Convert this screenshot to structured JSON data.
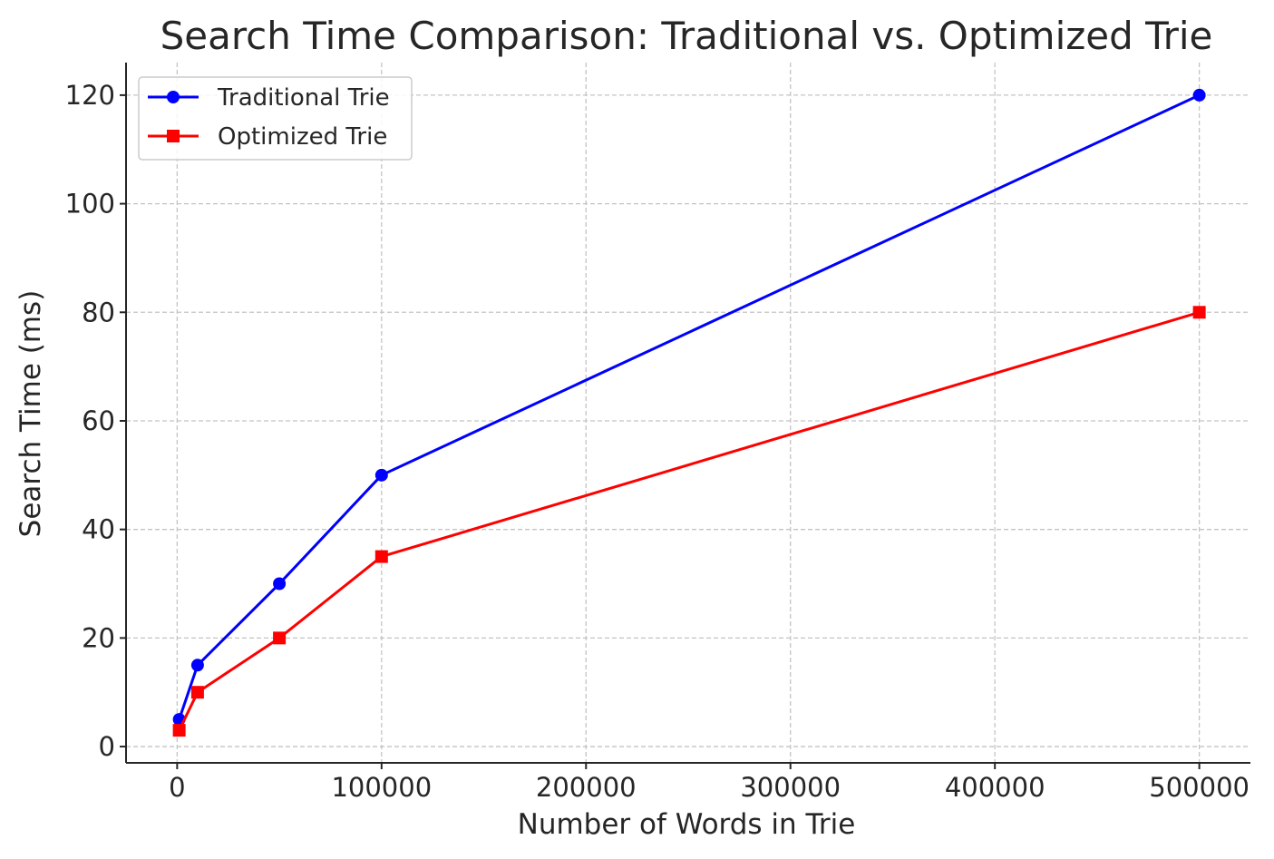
{
  "chart_data": {
    "type": "line",
    "title": "Search Time Comparison: Traditional vs. Optimized Trie",
    "xlabel": "Number of Words in Trie",
    "ylabel": "Search Time (ms)",
    "xlim": [
      -25000,
      525000
    ],
    "ylim": [
      -3,
      126
    ],
    "xticks": [
      0,
      100000,
      200000,
      300000,
      400000,
      500000
    ],
    "yticks": [
      0,
      20,
      40,
      60,
      80,
      100,
      120
    ],
    "grid": true,
    "legend_position": "upper-left",
    "series": [
      {
        "name": "Traditional Trie",
        "color": "#0000ff",
        "marker": "circle",
        "x": [
          1000,
          10000,
          50000,
          100000,
          500000
        ],
        "y": [
          5,
          15,
          30,
          50,
          120
        ]
      },
      {
        "name": "Optimized Trie",
        "color": "#ff0000",
        "marker": "square",
        "x": [
          1000,
          10000,
          50000,
          100000,
          500000
        ],
        "y": [
          3,
          10,
          20,
          35,
          80
        ]
      }
    ]
  }
}
